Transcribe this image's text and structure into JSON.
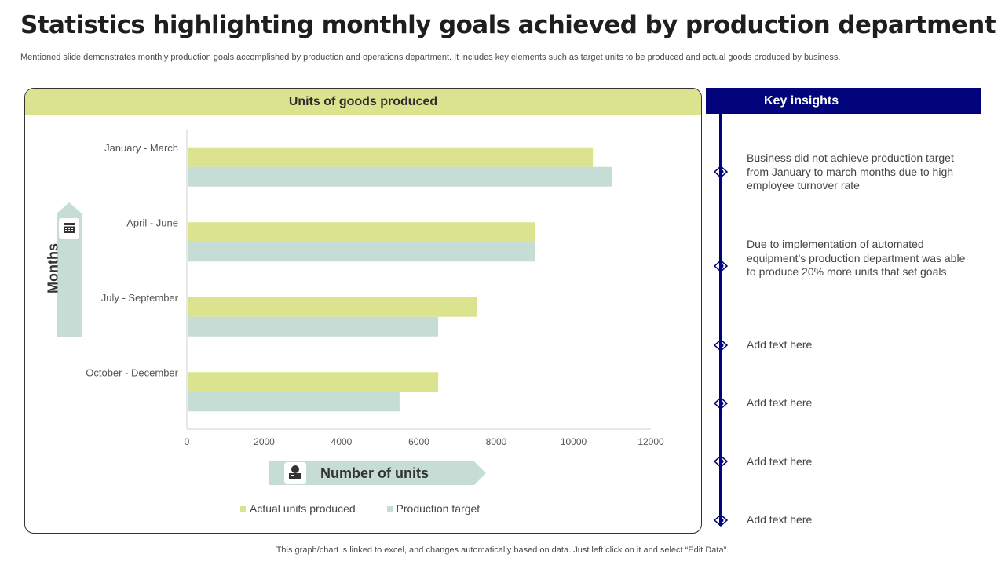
{
  "page": {
    "title": "Statistics highlighting monthly goals achieved by production department",
    "subtitle": "Mentioned slide demonstrates monthly production goals accomplished by production and operations department. It includes key elements such as target units to be produced and actual goods produced by business.",
    "footer": "This graph/chart is linked to excel,  and changes automatically based on data. Just left click on it and select “Edit Data”."
  },
  "colors": {
    "actual": "#dce38e",
    "target": "#c5ddd4",
    "accent_navy": "#01037a",
    "label_bg": "#c5ddd4"
  },
  "chart_data": {
    "type": "bar",
    "orientation": "horizontal",
    "title": "Units of goods produced",
    "categories": [
      "January - March",
      "April - June",
      "July - September",
      "October - December"
    ],
    "series": [
      {
        "name": "Actual units produced",
        "values": [
          10500,
          9000,
          7500,
          6500
        ]
      },
      {
        "name": "Production target",
        "values": [
          11000,
          9000,
          6500,
          5500
        ]
      }
    ],
    "xlim": [
      0,
      12000
    ],
    "xticks": [
      "0",
      "2000",
      "4000",
      "6000",
      "8000",
      "10000",
      "12000"
    ],
    "xlabel": "Number of units",
    "ylabel": "Months",
    "legend_position": "bottom",
    "grid": false
  },
  "insights": {
    "title": "Key insights",
    "items": [
      "Business did not achieve production target from January to march months due to high employee turnover rate",
      "Due to implementation of automated equipment’s production department was able to produce 20% more units that set goals",
      "Add text here",
      "Add text here",
      "Add text here",
      "Add text here"
    ]
  }
}
